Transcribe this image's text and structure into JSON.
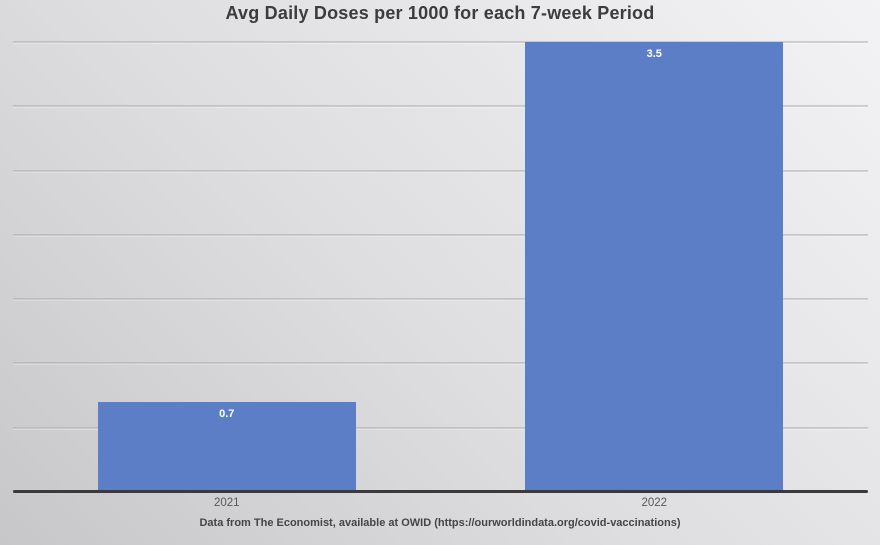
{
  "title": "Avg Daily Doses per 1000 for each 7-week Period",
  "caption": "Data from The Economist, available at OWID (https://ourworldindata.org/covid-vaccinations)",
  "colors": {
    "bar": "#5b7ec7",
    "background_light": "#f3f3f5",
    "background_dark": "#c7c7c9",
    "gridline": "#a7a7ab",
    "axis_line": "#3a3a3a",
    "title_text": "#3c3c3c",
    "tick_text": "#595959",
    "caption_text": "#454545",
    "value_label_text": "#ffffff"
  },
  "chart_data": {
    "type": "bar",
    "title": "Avg Daily Doses per 1000 for each 7-week Period",
    "categories": [
      "2021",
      "2022"
    ],
    "values": [
      0.7,
      3.5
    ],
    "value_labels": [
      "0.7",
      "3.5"
    ],
    "xlabel": "",
    "ylabel": "",
    "ylim": [
      0,
      3.5
    ],
    "gridline_interval": 0.5,
    "grid": true,
    "legend": false,
    "y_axis_labels_visible": false,
    "annotation": "Data from The Economist, available at OWID (https://ourworldindata.org/covid-vaccinations)"
  }
}
